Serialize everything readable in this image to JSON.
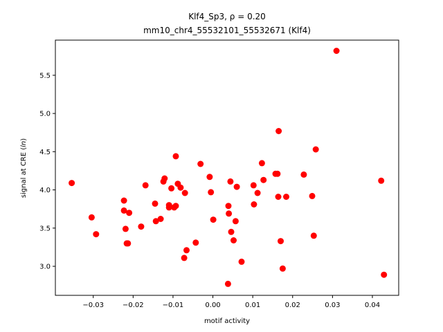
{
  "chart_data": {
    "type": "scatter",
    "title": "Klf4_Sp3, ρ = 0.20",
    "subtitle": "mm10_chr4_55532101_55532671 (Klf4)",
    "xlabel": "motif activity",
    "ylabel": "signal at CRE (ln)",
    "ylabel_parts": {
      "prefix": "signal at CRE (",
      "italic": "ln",
      "suffix": ")"
    },
    "xlim": [
      -0.0395,
      0.0466
    ],
    "ylim": [
      2.62,
      5.96
    ],
    "xticks": [
      -0.03,
      -0.02,
      -0.01,
      0.0,
      0.01,
      0.02,
      0.03,
      0.04
    ],
    "xtick_labels": [
      "−0.03",
      "−0.02",
      "−0.01",
      "0.00",
      "0.01",
      "0.02",
      "0.03",
      "0.04"
    ],
    "yticks": [
      3.0,
      3.5,
      4.0,
      4.5,
      5.0,
      5.5
    ],
    "ytick_labels": [
      "3.0",
      "3.5",
      "4.0",
      "4.5",
      "5.0",
      "5.5"
    ],
    "grid": false,
    "marker_color": "#ff0000",
    "points": [
      [
        -0.0354,
        4.09
      ],
      [
        -0.0304,
        3.64
      ],
      [
        -0.0293,
        3.42
      ],
      [
        -0.0223,
        3.86
      ],
      [
        -0.0223,
        3.73
      ],
      [
        -0.0219,
        3.49
      ],
      [
        -0.0216,
        3.3
      ],
      [
        -0.0213,
        3.3
      ],
      [
        -0.021,
        3.7
      ],
      [
        -0.018,
        3.52
      ],
      [
        -0.0169,
        4.06
      ],
      [
        -0.0145,
        3.82
      ],
      [
        -0.0143,
        3.59
      ],
      [
        -0.0131,
        3.62
      ],
      [
        -0.0124,
        4.11
      ],
      [
        -0.0121,
        4.15
      ],
      [
        -0.011,
        3.8
      ],
      [
        -0.011,
        3.77
      ],
      [
        -0.0104,
        4.02
      ],
      [
        -0.0097,
        3.77
      ],
      [
        -0.0093,
        3.79
      ],
      [
        -0.0093,
        4.44
      ],
      [
        -0.0088,
        4.08
      ],
      [
        -0.0081,
        4.03
      ],
      [
        -0.0072,
        3.11
      ],
      [
        -0.007,
        3.96
      ],
      [
        -0.0066,
        3.21
      ],
      [
        -0.0043,
        3.31
      ],
      [
        -0.0031,
        4.34
      ],
      [
        -0.0008,
        4.17
      ],
      [
        -0.0005,
        3.97
      ],
      [
        0.0001,
        3.61
      ],
      [
        0.0038,
        2.77
      ],
      [
        0.0039,
        3.79
      ],
      [
        0.004,
        3.69
      ],
      [
        0.0044,
        4.11
      ],
      [
        0.0046,
        3.45
      ],
      [
        0.0052,
        3.34
      ],
      [
        0.0057,
        3.59
      ],
      [
        0.006,
        4.04
      ],
      [
        0.0072,
        3.06
      ],
      [
        0.0102,
        4.06
      ],
      [
        0.0103,
        3.81
      ],
      [
        0.0112,
        3.96
      ],
      [
        0.0123,
        4.35
      ],
      [
        0.0127,
        4.13
      ],
      [
        0.0157,
        4.21
      ],
      [
        0.0162,
        4.21
      ],
      [
        0.0164,
        3.91
      ],
      [
        0.0165,
        4.77
      ],
      [
        0.017,
        3.33
      ],
      [
        0.0175,
        2.97
      ],
      [
        0.0184,
        3.91
      ],
      [
        0.0228,
        4.2
      ],
      [
        0.0249,
        3.92
      ],
      [
        0.0253,
        3.4
      ],
      [
        0.0258,
        4.53
      ],
      [
        0.031,
        5.82
      ],
      [
        0.0422,
        4.12
      ],
      [
        0.0429,
        2.89
      ]
    ]
  }
}
